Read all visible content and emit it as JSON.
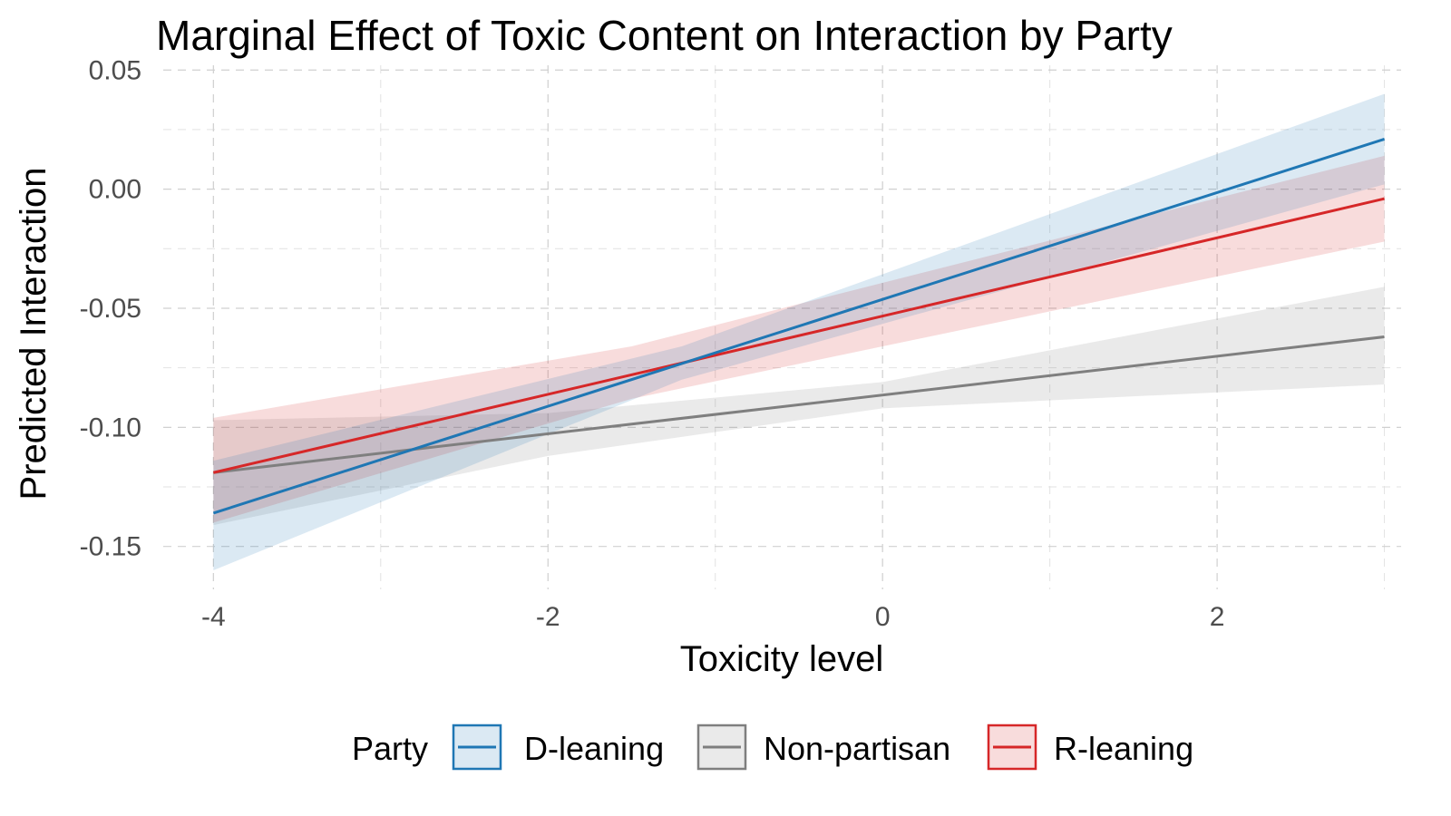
{
  "chart_data": {
    "type": "line",
    "title": "Marginal Effect of Toxic Content on Interaction by Party",
    "xlabel": "Toxicity level",
    "ylabel": "Predicted Interaction",
    "xlim": [
      -4.3,
      3.1
    ],
    "ylim": [
      -0.168,
      0.052
    ],
    "x_ticks": [
      -4,
      -2,
      0,
      2
    ],
    "x_tick_labels": [
      "-4",
      "-2",
      "0",
      "2"
    ],
    "y_ticks": [
      -0.15,
      -0.1,
      -0.05,
      0.0,
      0.05
    ],
    "y_tick_labels": [
      "-0.15",
      "-0.10",
      "-0.05",
      "0.00",
      "0.05"
    ],
    "x_minor": [
      -3,
      -1,
      1,
      3
    ],
    "y_minor": [
      -0.125,
      -0.075,
      -0.025,
      0.025
    ],
    "grid": true,
    "legend_title": "Party",
    "legend_position": "bottom",
    "series": [
      {
        "name": "Non-partisan",
        "color": "#7f7f7f",
        "x": [
          -4,
          3
        ],
        "y": [
          -0.119,
          -0.062
        ],
        "ci_x": [
          -4,
          -2,
          0,
          3
        ],
        "ci_lower": [
          -0.141,
          -0.112,
          -0.092,
          -0.082
        ],
        "ci_upper": [
          -0.097,
          -0.094,
          -0.081,
          -0.041
        ]
      },
      {
        "name": "R-leaning",
        "color": "#d62728",
        "x": [
          -4,
          3
        ],
        "y": [
          -0.119,
          -0.004
        ],
        "ci_x": [
          -4,
          -1.5,
          3
        ],
        "ci_lower": [
          -0.14,
          -0.088,
          -0.022
        ],
        "ci_upper": [
          -0.096,
          -0.066,
          0.014
        ]
      },
      {
        "name": "D-leaning",
        "color": "#1f77b4",
        "x": [
          -4,
          3
        ],
        "y": [
          -0.136,
          0.021
        ],
        "ci_x": [
          -4,
          -1.2,
          3
        ],
        "ci_lower": [
          -0.16,
          -0.08,
          0.002
        ],
        "ci_upper": [
          -0.114,
          -0.066,
          0.04
        ]
      }
    ],
    "legend_order": [
      "D-leaning",
      "Non-partisan",
      "R-leaning"
    ]
  }
}
